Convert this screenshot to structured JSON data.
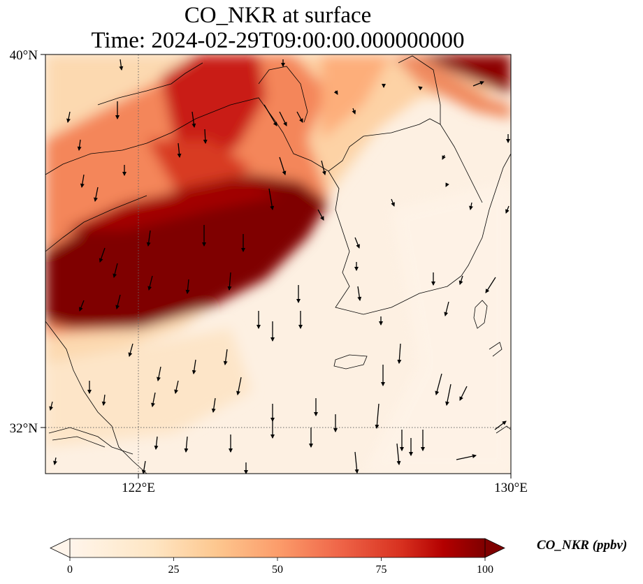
{
  "title": {
    "line1": "CO_NKR at surface",
    "line2": "Time: 2024-02-29T09:00:00.000000000"
  },
  "map": {
    "lat_labels": [
      "40°N",
      "32°N"
    ],
    "lon_labels": [
      "122°E",
      "130°E"
    ],
    "field_colors": {
      "low": "#fff5eb",
      "mid": "#fdbe85",
      "high": "#7f0000"
    },
    "features": [
      "coastlines",
      "country-borders",
      "gridlines",
      "wind-vectors",
      "co-concentration-field"
    ]
  },
  "colorbar": {
    "label": "CO_NKR (ppbv)",
    "ticks": [
      "0",
      "25",
      "50",
      "75",
      "100"
    ],
    "min": 0,
    "max": 100,
    "extend": "both",
    "colormap": "OrRd"
  }
}
